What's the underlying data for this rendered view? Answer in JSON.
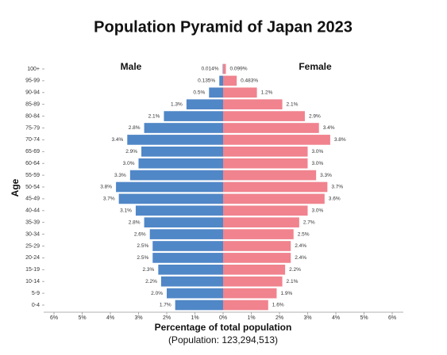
{
  "chart_data": {
    "type": "pyramid",
    "title": "Population Pyramid of Japan 2023",
    "subtitle": "(Population: 123,294,513)",
    "x_label": "Percentage of total population",
    "y_label": "Age",
    "categories": [
      "100+",
      "95-99",
      "90-94",
      "85-89",
      "80-84",
      "75-79",
      "70-74",
      "65-69",
      "60-64",
      "55-59",
      "50-54",
      "45-49",
      "40-44",
      "35-39",
      "30-34",
      "25-29",
      "20-24",
      "15-19",
      "10-14",
      "5-9",
      "0-4"
    ],
    "series": [
      {
        "name": "Male",
        "color": "#5087c7",
        "values": [
          0.014,
          0.135,
          0.5,
          1.3,
          2.1,
          2.8,
          3.4,
          2.9,
          3.0,
          3.3,
          3.8,
          3.7,
          3.1,
          2.8,
          2.6,
          2.5,
          2.5,
          2.3,
          2.2,
          2.0,
          1.7
        ],
        "value_labels": [
          "0.014%",
          "0.135%",
          "0.5%",
          "1.3%",
          "2.1%",
          "2.8%",
          "3.4%",
          "2.9%",
          "3.0%",
          "3.3%",
          "3.8%",
          "3.7%",
          "3.1%",
          "2.8%",
          "2.6%",
          "2.5%",
          "2.5%",
          "2.3%",
          "2.2%",
          "2.0%",
          "1.7%"
        ]
      },
      {
        "name": "Female",
        "color": "#f0838e",
        "values": [
          0.099,
          0.483,
          1.2,
          2.1,
          2.9,
          3.4,
          3.8,
          3.0,
          3.0,
          3.3,
          3.7,
          3.6,
          3.0,
          2.7,
          2.5,
          2.4,
          2.4,
          2.2,
          2.1,
          1.9,
          1.6
        ],
        "value_labels": [
          "0.099%",
          "0.483%",
          "1.2%",
          "2.1%",
          "2.9%",
          "3.4%",
          "3.8%",
          "3.0%",
          "3.0%",
          "3.3%",
          "3.7%",
          "3.6%",
          "3.0%",
          "2.7%",
          "2.5%",
          "2.4%",
          "2.4%",
          "2.2%",
          "2.1%",
          "1.9%",
          "1.6%"
        ]
      }
    ],
    "xlim": [
      -6,
      6
    ],
    "xticks": [
      {
        "value": -6,
        "label": "6%"
      },
      {
        "value": -5,
        "label": "5%"
      },
      {
        "value": -4,
        "label": "4%"
      },
      {
        "value": -3,
        "label": "3%"
      },
      {
        "value": -2,
        "label": "2%"
      },
      {
        "value": -1,
        "label": "1%"
      },
      {
        "value": 0,
        "label": "0%"
      },
      {
        "value": 1,
        "label": "1%"
      },
      {
        "value": 2,
        "label": "2%"
      },
      {
        "value": 3,
        "label": "3%"
      },
      {
        "value": 4,
        "label": "4%"
      },
      {
        "value": 5,
        "label": "5%"
      },
      {
        "value": 6,
        "label": "6%"
      }
    ]
  }
}
